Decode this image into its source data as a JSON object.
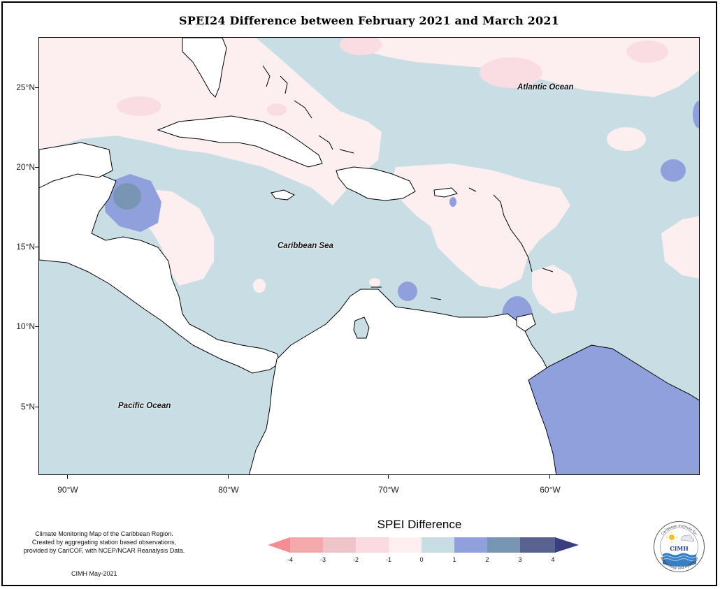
{
  "title": "SPEI24 Difference between February 2021 and March 2021",
  "map": {
    "latitude_labels": [
      "25°N",
      "20°N",
      "15°N",
      "10°N",
      "5°N"
    ],
    "longitude_labels": [
      "90°W",
      "80°W",
      "70°W",
      "60°W"
    ],
    "ocean_labels": {
      "atlantic": "Atlantic Ocean",
      "caribbean": "Caribbean Sea",
      "pacific": "Pacific Ocean"
    }
  },
  "legend": {
    "title": "SPEI Difference",
    "ticks": [
      "-4",
      "-3",
      "-2",
      "-1",
      "0",
      "1",
      "2",
      "3",
      "4"
    ],
    "colors": [
      "#f28e94",
      "#f4a9ad",
      "#eec4c8",
      "#fbdbe1",
      "#fdeff0",
      "#c8dde3",
      "#8fa0dc",
      "#7896b4",
      "#5a6390",
      "#3a3e80"
    ]
  },
  "note": {
    "line1": "Climate Monitoring Map of the Caribbean Region.",
    "line2": "Created by aggregating station based observations,",
    "line3": "provided by CariCOF, with NCEP/NCAR Reanalysis Data.",
    "footer": "CIMH May-2021"
  },
  "logo": {
    "top_text": "Caribbean Institute for",
    "bottom_text": "Meteorology and Hydrology",
    "center_text": "CIMH"
  }
}
